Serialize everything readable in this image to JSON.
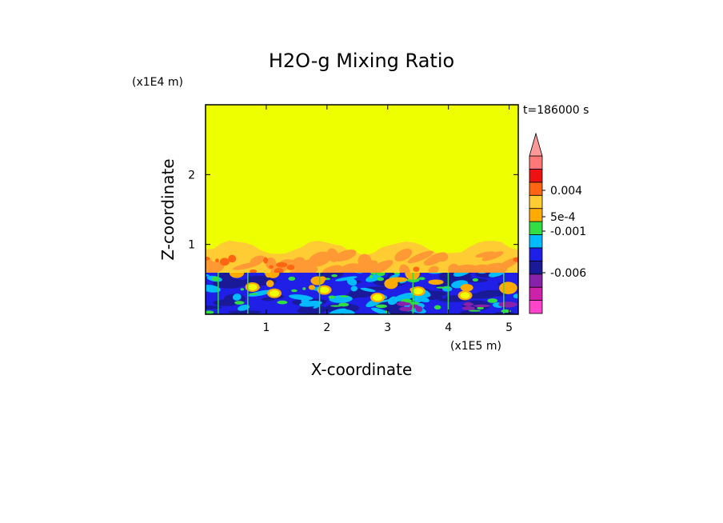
{
  "chart_data": {
    "type": "heatmap",
    "title": "H2O-g Mixing Ratio",
    "xlabel": "X-coordinate",
    "ylabel": "Z-coordinate",
    "x_scale_label": "(x1E5 m)",
    "y_scale_label": "(x1E4 m)",
    "time_label": "t=186000 s",
    "xlim": [
      0,
      5.15
    ],
    "ylim": [
      0,
      3.0
    ],
    "x_ticks": [
      {
        "value": 1,
        "label": "1"
      },
      {
        "value": 2,
        "label": "2"
      },
      {
        "value": 3,
        "label": "3"
      },
      {
        "value": 4,
        "label": "4"
      },
      {
        "value": 5,
        "label": "5"
      }
    ],
    "y_ticks": [
      {
        "value": 1,
        "label": "1"
      },
      {
        "value": 2,
        "label": "2"
      }
    ],
    "regions": {
      "background_color": "#eeff00",
      "background_top": 3.0,
      "band_top": 1.05,
      "band_bottom": 0.6,
      "band_colors": [
        "#ffcc33",
        "#ff9933",
        "#ff6611"
      ],
      "lower_region_top": 0.6,
      "lower_region_colors": [
        "#1f1fe8",
        "#1a1a99",
        "#00bbff",
        "#33dd44",
        "#ffaa00",
        "#eeff00",
        "#8822aa"
      ]
    },
    "colorbar": {
      "levels": [
        {
          "color": "#ff44cc"
        },
        {
          "color": "#cc22aa"
        },
        {
          "color": "#8822aa"
        },
        {
          "color": "#1a1a99"
        },
        {
          "color": "#1f1fe8"
        },
        {
          "color": "#00bbff"
        },
        {
          "color": "#33dd44"
        },
        {
          "color": "#ffaa00"
        },
        {
          "color": "#ffcc33"
        },
        {
          "color": "#ff6611"
        },
        {
          "color": "#ee1111"
        },
        {
          "color": "#ff7777"
        }
      ],
      "arrow_color": "#ff9999",
      "labels": [
        "0.004",
        "5e-4",
        "-0.001",
        "-0.006"
      ]
    }
  }
}
